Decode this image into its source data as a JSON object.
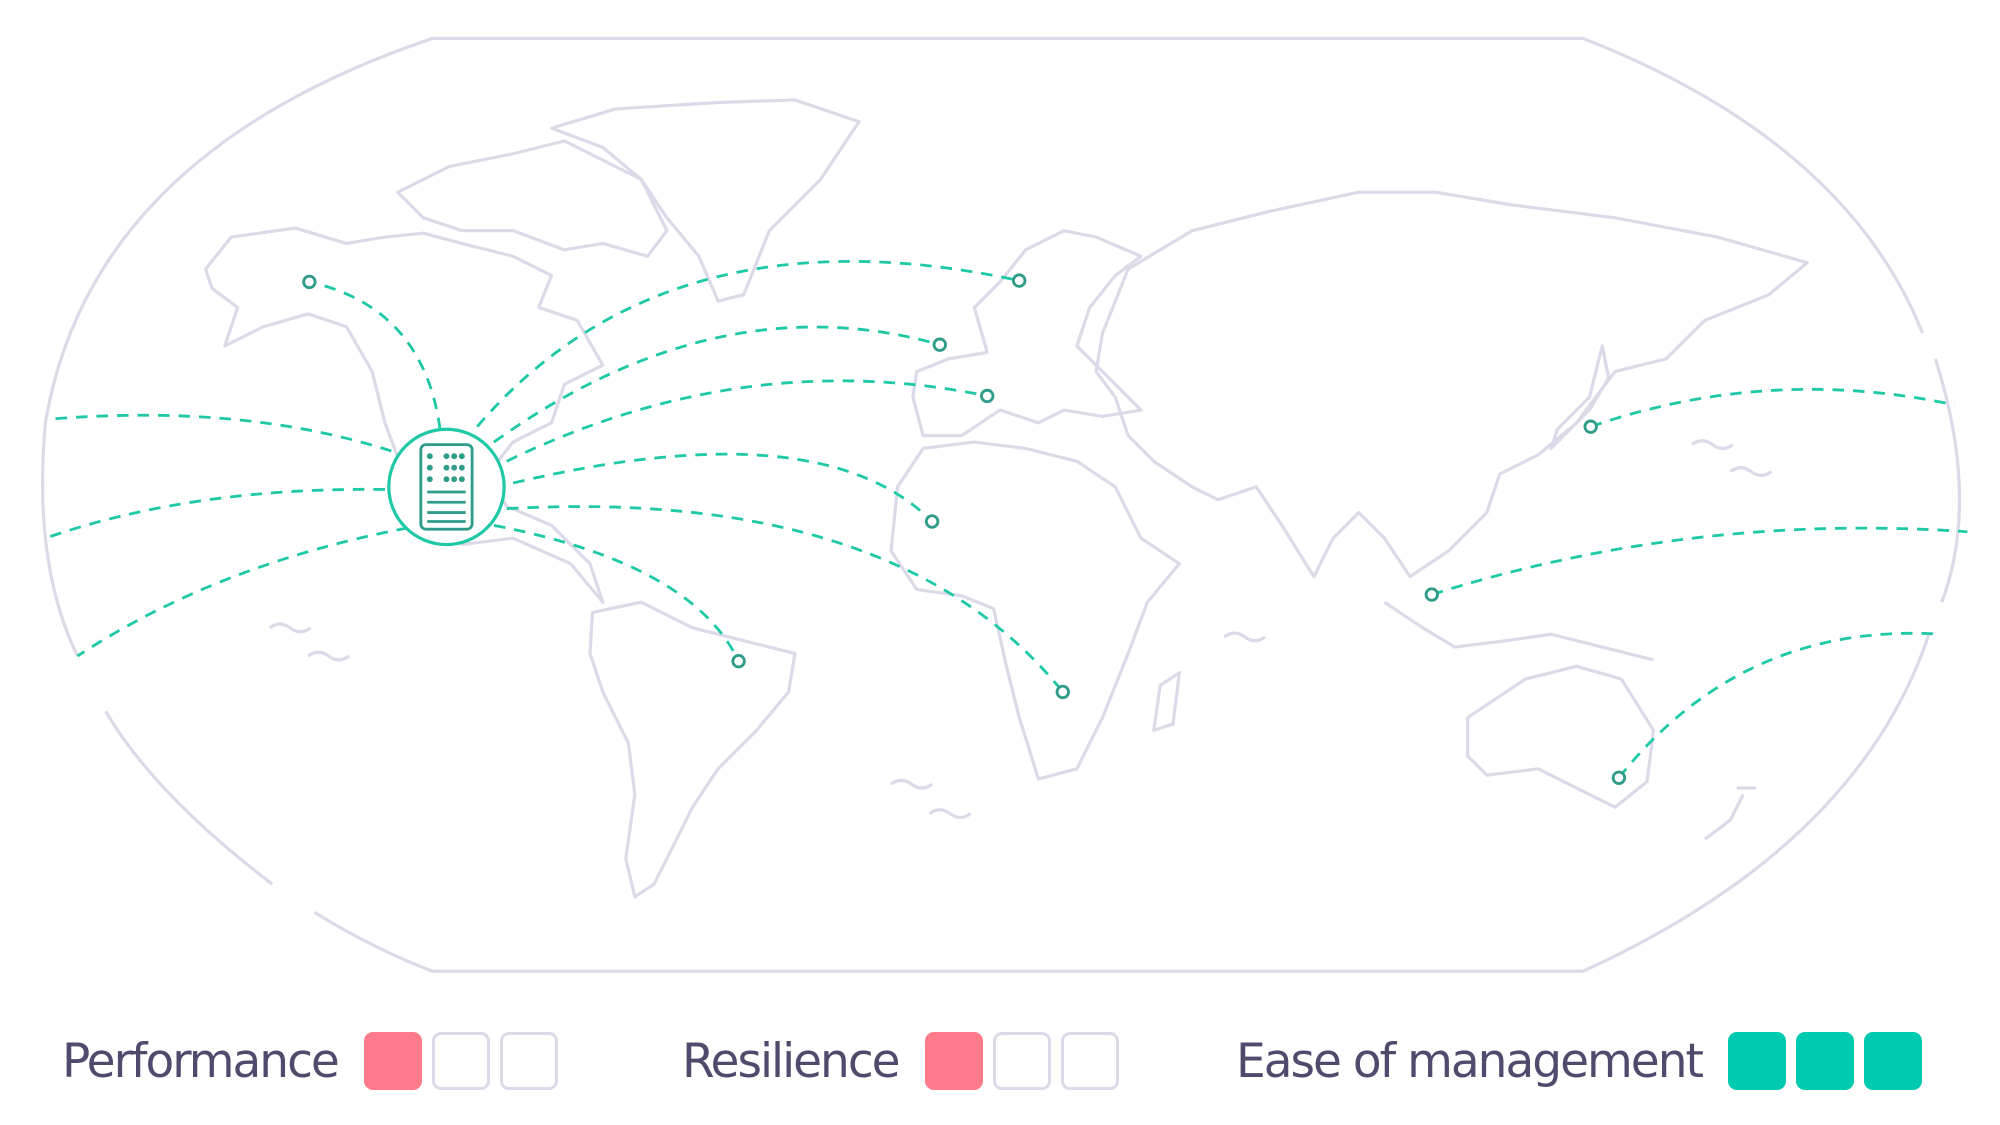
{
  "colors": {
    "route": "#1fc9a5",
    "land": "#dcdae8",
    "hub": "#1fc9a5",
    "server": "#2e9c88",
    "text": "#4f4b6d",
    "empty": "#dcdae8"
  },
  "hub": {
    "icon": "server-icon"
  },
  "destinations": [
    "alaska",
    "scandinavia",
    "uk",
    "italy",
    "west-africa",
    "brazil",
    "southern-africa",
    "japan",
    "singapore",
    "australia"
  ],
  "legend": [
    {
      "label": "Performance",
      "score": 1,
      "max": 3,
      "color": "#ff7a8a"
    },
    {
      "label": "Resilience",
      "score": 1,
      "max": 3,
      "color": "#ff7a8a"
    },
    {
      "label": "Ease of management",
      "score": 3,
      "max": 3,
      "color": "#00cbb0"
    }
  ]
}
